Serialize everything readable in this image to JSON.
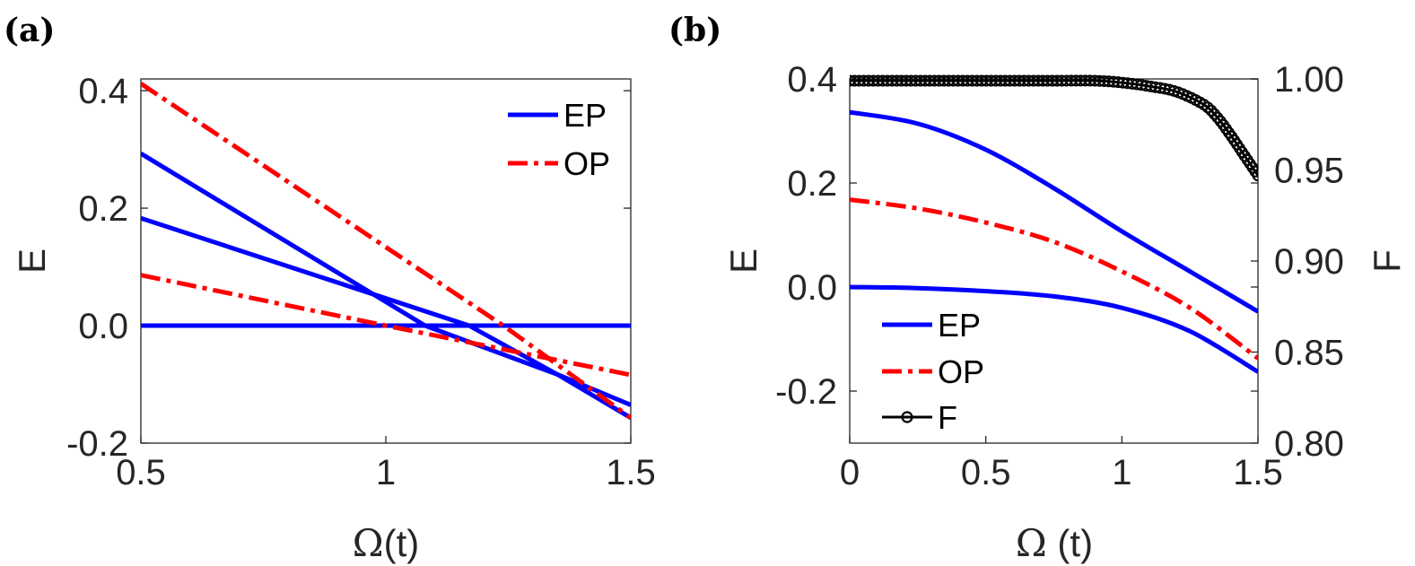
{
  "chart_data": [
    {
      "type": "line",
      "panel_label": "(a)",
      "xlabel_symbol": "Ω",
      "xlabel_rest": "(t)",
      "ylabel": "E",
      "xlim": [
        0.5,
        1.5
      ],
      "ylim": [
        -0.2,
        0.42
      ],
      "xticks": [
        0.5,
        1,
        1.5
      ],
      "xtick_labels": [
        "0.5",
        "1",
        "1.5"
      ],
      "yticks": [
        -0.2,
        0.0,
        0.2,
        0.4
      ],
      "ytick_labels": [
        "-0.2",
        "0.0",
        "0.2",
        "0.4"
      ],
      "legend": {
        "position": "top-right",
        "entries": [
          "EP",
          "OP"
        ]
      },
      "colors": {
        "EP": "#0000ff",
        "OP": "#ff0000"
      },
      "series": [
        {
          "name": "EP",
          "style": "solid",
          "x": [
            0.5,
            1.5
          ],
          "y": [
            0.0,
            0.0
          ]
        },
        {
          "name": "EP",
          "style": "solid",
          "x": [
            0.5,
            1.17,
            1.35,
            1.5
          ],
          "y": [
            0.183,
            0.0,
            -0.083,
            -0.135
          ]
        },
        {
          "name": "EP",
          "style": "solid",
          "x": [
            0.5,
            1.08,
            1.35,
            1.5
          ],
          "y": [
            0.293,
            0.0,
            -0.083,
            -0.157
          ]
        },
        {
          "name": "OP",
          "style": "dashdot",
          "x": [
            0.5,
            1.0,
            1.5
          ],
          "y": [
            0.086,
            0.0,
            -0.084
          ]
        },
        {
          "name": "OP",
          "style": "dashdot",
          "x": [
            0.5,
            1.24,
            1.5
          ],
          "y": [
            0.412,
            0.0,
            -0.157
          ]
        }
      ]
    },
    {
      "type": "line",
      "panel_label": "(b)",
      "xlabel_symbol": "Ω",
      "xlabel_rest": " (t)",
      "ylabel": "E",
      "ylabel_right": "F",
      "xlim": [
        0,
        1.5
      ],
      "ylim": [
        -0.3,
        0.4
      ],
      "ylim_right": [
        0.8,
        1.0
      ],
      "xticks": [
        0,
        0.5,
        1,
        1.5
      ],
      "xtick_labels": [
        "0",
        "0.5",
        "1",
        "1.5"
      ],
      "yticks": [
        -0.2,
        0.0,
        0.2,
        0.4
      ],
      "ytick_labels": [
        "-0.2",
        "0.0",
        "0.2",
        "0.4"
      ],
      "yticks_right": [
        0.8,
        0.85,
        0.9,
        0.95,
        1.0
      ],
      "ytick_labels_right": [
        "0.80",
        "0.85",
        "0.90",
        "0.95",
        "1.00"
      ],
      "legend": {
        "position": "bottom-left",
        "entries": [
          "EP",
          "OP",
          "F"
        ]
      },
      "colors": {
        "EP": "#0000ff",
        "OP": "#ff0000",
        "F": "#000000"
      },
      "series": [
        {
          "name": "EP",
          "style": "solid",
          "axis": "left",
          "x": [
            0,
            0.25,
            0.5,
            0.75,
            1.0,
            1.25,
            1.5
          ],
          "y": [
            0.336,
            0.314,
            0.264,
            0.19,
            0.107,
            0.03,
            -0.047
          ]
        },
        {
          "name": "OP",
          "style": "dashdot",
          "axis": "left",
          "x": [
            0,
            0.25,
            0.5,
            0.75,
            1.0,
            1.25,
            1.5
          ],
          "y": [
            0.168,
            0.151,
            0.124,
            0.087,
            0.03,
            -0.04,
            -0.137
          ]
        },
        {
          "name": "EP",
          "style": "solid",
          "axis": "left",
          "x": [
            0,
            0.25,
            0.5,
            0.75,
            1.0,
            1.25,
            1.5
          ],
          "y": [
            0.0,
            -0.002,
            -0.008,
            -0.018,
            -0.04,
            -0.085,
            -0.163
          ]
        },
        {
          "name": "F",
          "style": "marker-line",
          "axis": "right",
          "x": [
            0,
            0.25,
            0.5,
            0.75,
            0.9,
            1.0,
            1.1,
            1.2,
            1.3,
            1.35,
            1.4,
            1.45,
            1.5
          ],
          "y": [
            0.999,
            0.999,
            0.999,
            0.999,
            0.999,
            0.998,
            0.996,
            0.993,
            0.986,
            0.979,
            0.969,
            0.958,
            0.947
          ]
        }
      ]
    }
  ]
}
